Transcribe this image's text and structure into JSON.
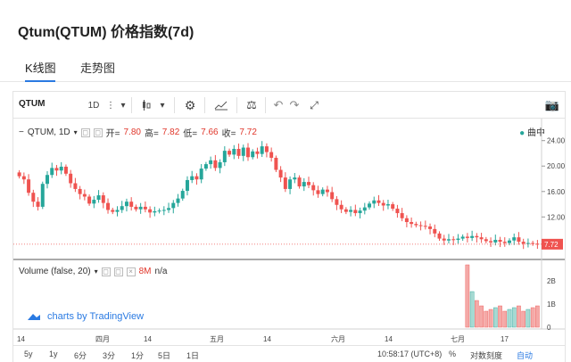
{
  "page_title": "Qtum(QTUM) 价格指数(7d)",
  "tabs": [
    {
      "label": "K线图"
    },
    {
      "label": "走势图"
    }
  ],
  "toolbar": {
    "symbol": "QTUM",
    "interval": "1D"
  },
  "legend": {
    "name": "QTUM, 1D",
    "open_label": "开=",
    "open": "7.80",
    "high_label": "高=",
    "high": "7.82",
    "low_label": "低=",
    "low": "7.66",
    "close_label": "收=",
    "close": "7.72",
    "series_toggle": "曲中"
  },
  "volume_legend": {
    "name": "Volume (false, 20)",
    "value": "8M",
    "extra": "n/a"
  },
  "brand": "charts by TradingView",
  "price_axis": [
    "24.00",
    "20.00",
    "16.00",
    "12.00"
  ],
  "last_price": "7.72",
  "volume_axis": [
    "2B",
    "1B",
    "0"
  ],
  "time_axis": [
    "14",
    "四月",
    "14",
    "五月",
    "14",
    "六月",
    "14",
    "七月",
    "17"
  ],
  "bottom": {
    "ranges": [
      "5y",
      "1y",
      "6分",
      "3分",
      "1分",
      "5日",
      "1日"
    ],
    "time": "10:58:17 (UTC+8)",
    "pct": "%",
    "log": "对数刻度",
    "auto": "自动"
  },
  "colors": {
    "up": "#26a69a",
    "down": "#ef5350",
    "accent": "#2a7ae2"
  },
  "chart_data": {
    "type": "candlestick",
    "ylim": [
      7.0,
      25.5
    ],
    "series_close": [
      18.4,
      17.9,
      15.8,
      14.4,
      13.6,
      17.2,
      18.6,
      19.7,
      19.3,
      19.9,
      18.8,
      17.3,
      16.4,
      15.6,
      15.2,
      14.1,
      14.7,
      15.4,
      14.2,
      13.1,
      12.8,
      13.1,
      13.7,
      14.4,
      13.6,
      13.2,
      13.6,
      13.2,
      12.7,
      12.9,
      13.0,
      13.1,
      13.4,
      14.2,
      14.9,
      16.1,
      17.8,
      18.4,
      17.9,
      19.6,
      20.3,
      20.9,
      19.7,
      20.6,
      22.4,
      21.8,
      22.7,
      21.6,
      22.9,
      21.4,
      22.3,
      21.9,
      23.1,
      22.2,
      21.3,
      19.4,
      18.2,
      16.4,
      17.9,
      18.2,
      16.8,
      17.5,
      17.0,
      16.2,
      15.6,
      16.3,
      15.9,
      14.8,
      13.9,
      13.2,
      12.8,
      13.1,
      12.6,
      13.0,
      13.5,
      14.1,
      14.6,
      14.2,
      13.8,
      14.0,
      13.3,
      12.6,
      11.8,
      11.2,
      10.9,
      10.7,
      10.6,
      10.5,
      10.1,
      9.4,
      8.6,
      8.3,
      8.5,
      8.4,
      8.6,
      8.9,
      8.7,
      9.0,
      8.8,
      8.5,
      8.2,
      8.0,
      8.4,
      8.1,
      7.9,
      8.3,
      8.8,
      8.1,
      7.8,
      7.9,
      7.8,
      7.7
    ]
  }
}
